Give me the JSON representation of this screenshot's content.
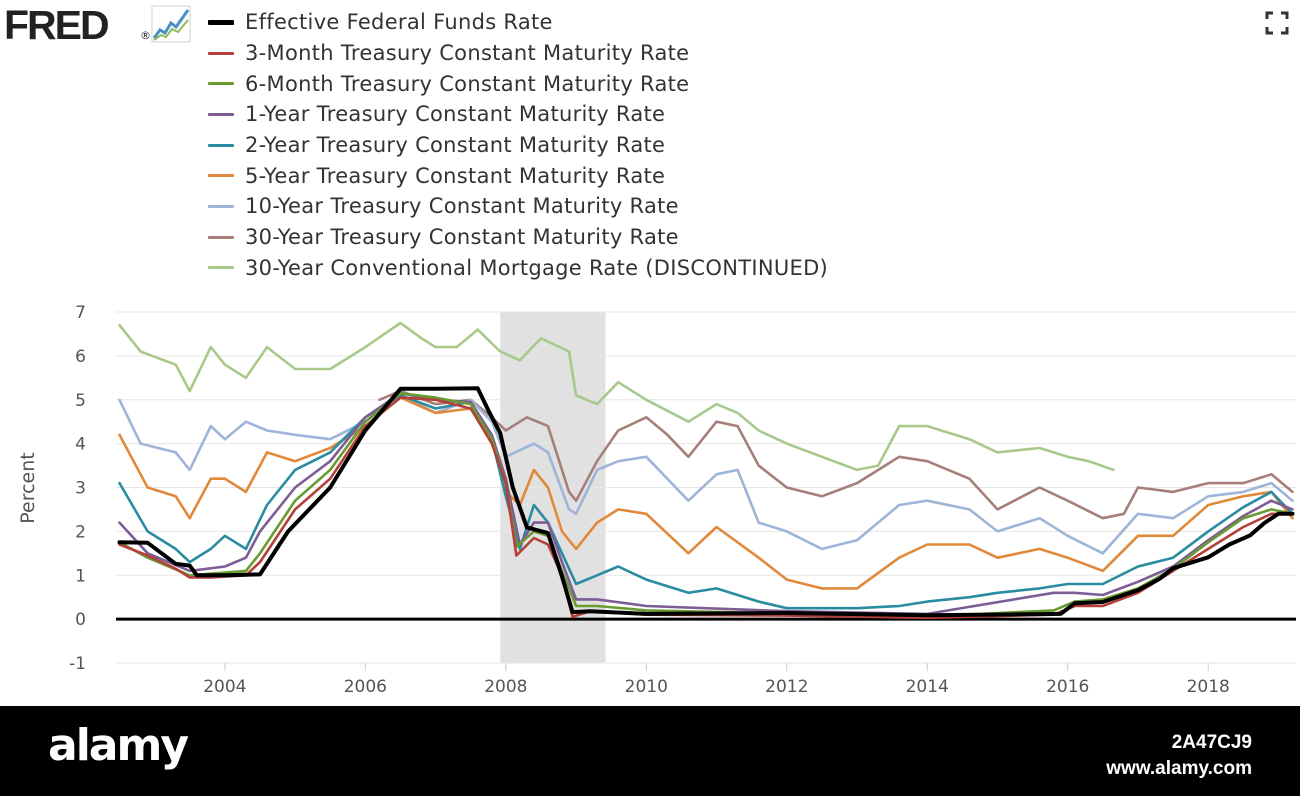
{
  "logo": {
    "text": "FRED",
    "mark": "®",
    "icon": "trend-line-icon"
  },
  "fullscreen_icon": "expand-icon",
  "footer": {
    "brand": "alamy",
    "image_id": "2A47CJ9",
    "url": "www.alamy.com"
  },
  "colors": {
    "recession_band": "#e1e1e1",
    "zero_line": "#000000",
    "grid": "#e6e6e6",
    "footer_bg": "#000000"
  },
  "chart_data": {
    "type": "line",
    "ylabel": "Percent",
    "ylim": [
      -1,
      7
    ],
    "yticks": [
      "7",
      "6",
      "5",
      "4",
      "3",
      "2",
      "1",
      "0",
      "-1"
    ],
    "xlim": [
      2002.45,
      2019.25
    ],
    "xticks": [
      "2004",
      "2006",
      "2008",
      "2010",
      "2012",
      "2014",
      "2016",
      "2018"
    ],
    "grid": true,
    "legend_position": "top",
    "recession": [
      2007.92,
      2009.42
    ],
    "series": [
      {
        "name": "Effective Federal Funds Rate",
        "color": "#000000",
        "x": [
          2002.5,
          2002.9,
          2003.3,
          2003.5,
          2003.6,
          2004.0,
          2004.5,
          2004.9,
          2005.5,
          2006.0,
          2006.5,
          2007.0,
          2007.6,
          2007.75,
          2007.92,
          2008.1,
          2008.3,
          2008.6,
          2008.8,
          2008.95,
          2009.2,
          2010.0,
          2012.0,
          2014.0,
          2015.9,
          2016.1,
          2016.5,
          2017.0,
          2017.3,
          2017.5,
          2018.0,
          2018.3,
          2018.6,
          2018.8,
          2019.0,
          2019.2
        ],
        "y": [
          1.75,
          1.74,
          1.26,
          1.22,
          1.0,
          1.0,
          1.02,
          2.0,
          3.0,
          4.3,
          5.25,
          5.25,
          5.26,
          4.76,
          4.24,
          3.0,
          2.09,
          1.96,
          0.97,
          0.16,
          0.18,
          0.12,
          0.14,
          0.09,
          0.12,
          0.36,
          0.39,
          0.66,
          0.91,
          1.16,
          1.41,
          1.7,
          1.91,
          2.19,
          2.4,
          2.4
        ]
      },
      {
        "name": "3-Month Treasury Constant Maturity Rate",
        "color": "#b5403a",
        "x": [
          2002.5,
          2002.9,
          2003.3,
          2003.5,
          2003.8,
          2004.3,
          2004.5,
          2005.0,
          2005.5,
          2006.0,
          2006.5,
          2007.0,
          2007.5,
          2007.8,
          2008.0,
          2008.15,
          2008.4,
          2008.6,
          2008.8,
          2008.95,
          2009.2,
          2010.0,
          2012.0,
          2014.0,
          2015.8,
          2016.1,
          2016.5,
          2017.0,
          2017.5,
          2018.0,
          2018.5,
          2018.9,
          2019.2
        ],
        "y": [
          1.7,
          1.45,
          1.15,
          0.95,
          0.95,
          1.0,
          1.3,
          2.5,
          3.2,
          4.4,
          5.05,
          5.0,
          4.8,
          4.0,
          3.1,
          1.45,
          1.85,
          1.7,
          1.0,
          0.05,
          0.18,
          0.1,
          0.08,
          0.03,
          0.1,
          0.3,
          0.3,
          0.6,
          1.1,
          1.6,
          2.1,
          2.4,
          2.4
        ]
      },
      {
        "name": "6-Month Treasury Constant Maturity Rate",
        "color": "#6a9b32",
        "x": [
          2002.5,
          2002.9,
          2003.5,
          2004.3,
          2004.5,
          2005.0,
          2005.5,
          2006.0,
          2006.5,
          2007.0,
          2007.5,
          2007.8,
          2008.0,
          2008.15,
          2008.4,
          2008.6,
          2008.8,
          2009.0,
          2009.3,
          2010.0,
          2012.0,
          2014.0,
          2015.8,
          2016.1,
          2016.5,
          2017.0,
          2017.5,
          2018.0,
          2018.5,
          2018.9,
          2019.2
        ],
        "y": [
          1.75,
          1.4,
          1.0,
          1.1,
          1.5,
          2.7,
          3.4,
          4.5,
          5.15,
          5.05,
          4.9,
          4.1,
          3.1,
          1.65,
          2.0,
          1.9,
          1.1,
          0.3,
          0.3,
          0.2,
          0.13,
          0.06,
          0.2,
          0.4,
          0.45,
          0.7,
          1.15,
          1.75,
          2.3,
          2.5,
          2.4
        ]
      },
      {
        "name": "1-Year Treasury Constant Maturity Rate",
        "color": "#7e5c96",
        "x": [
          2002.5,
          2002.9,
          2003.5,
          2004.0,
          2004.3,
          2004.5,
          2005.0,
          2005.5,
          2006.0,
          2006.5,
          2007.0,
          2007.5,
          2007.8,
          2008.0,
          2008.2,
          2008.4,
          2008.6,
          2008.8,
          2009.0,
          2009.3,
          2010.0,
          2012.0,
          2014.0,
          2015.8,
          2016.1,
          2016.5,
          2017.0,
          2017.5,
          2018.0,
          2018.5,
          2018.9,
          2019.2
        ],
        "y": [
          2.2,
          1.5,
          1.1,
          1.2,
          1.4,
          2.0,
          3.0,
          3.6,
          4.6,
          5.15,
          5.0,
          4.95,
          4.2,
          3.2,
          1.7,
          2.2,
          2.2,
          1.3,
          0.45,
          0.45,
          0.3,
          0.18,
          0.12,
          0.6,
          0.6,
          0.55,
          0.85,
          1.2,
          1.8,
          2.35,
          2.7,
          2.5
        ]
      },
      {
        "name": "2-Year Treasury Constant Maturity Rate",
        "color": "#2a8ca0",
        "x": [
          2002.5,
          2002.9,
          2003.3,
          2003.5,
          2003.8,
          2004.0,
          2004.3,
          2004.6,
          2005.0,
          2005.5,
          2006.0,
          2006.5,
          2007.0,
          2007.5,
          2007.8,
          2008.0,
          2008.2,
          2008.4,
          2008.6,
          2008.8,
          2009.0,
          2009.3,
          2009.6,
          2010.0,
          2010.6,
          2011.0,
          2011.6,
          2012.0,
          2013.0,
          2013.6,
          2014.0,
          2014.6,
          2015.0,
          2015.6,
          2016.0,
          2016.5,
          2017.0,
          2017.5,
          2018.0,
          2018.5,
          2018.9,
          2019.2
        ],
        "y": [
          3.1,
          2.0,
          1.6,
          1.3,
          1.6,
          1.9,
          1.6,
          2.6,
          3.4,
          3.8,
          4.6,
          5.1,
          4.8,
          4.95,
          4.1,
          2.8,
          1.6,
          2.6,
          2.2,
          1.5,
          0.8,
          1.0,
          1.2,
          0.9,
          0.6,
          0.7,
          0.4,
          0.25,
          0.25,
          0.3,
          0.4,
          0.5,
          0.6,
          0.7,
          0.8,
          0.8,
          1.2,
          1.4,
          2.0,
          2.55,
          2.9,
          2.4
        ]
      },
      {
        "name": "5-Year Treasury Constant Maturity Rate",
        "color": "#e0893a",
        "x": [
          2002.5,
          2002.9,
          2003.3,
          2003.5,
          2003.8,
          2004.0,
          2004.3,
          2004.6,
          2005.0,
          2005.5,
          2006.0,
          2006.5,
          2007.0,
          2007.5,
          2007.8,
          2008.0,
          2008.2,
          2008.4,
          2008.6,
          2008.8,
          2009.0,
          2009.3,
          2009.6,
          2010.0,
          2010.6,
          2011.0,
          2011.6,
          2012.0,
          2012.5,
          2013.0,
          2013.6,
          2014.0,
          2014.6,
          2015.0,
          2015.6,
          2016.0,
          2016.5,
          2017.0,
          2017.5,
          2018.0,
          2018.5,
          2018.9,
          2019.2
        ],
        "y": [
          4.2,
          3.0,
          2.8,
          2.3,
          3.2,
          3.2,
          2.9,
          3.8,
          3.6,
          3.9,
          4.4,
          5.05,
          4.7,
          4.8,
          4.1,
          2.9,
          2.6,
          3.4,
          3.0,
          2.0,
          1.6,
          2.2,
          2.5,
          2.4,
          1.5,
          2.1,
          1.4,
          0.9,
          0.7,
          0.7,
          1.4,
          1.7,
          1.7,
          1.4,
          1.6,
          1.4,
          1.1,
          1.9,
          1.9,
          2.6,
          2.8,
          2.9,
          2.3
        ]
      },
      {
        "name": "10-Year Treasury Constant Maturity Rate",
        "color": "#9eb4d8",
        "x": [
          2002.5,
          2002.8,
          2003.3,
          2003.5,
          2003.8,
          2004.0,
          2004.3,
          2004.6,
          2005.0,
          2005.5,
          2006.0,
          2006.5,
          2007.0,
          2007.5,
          2007.8,
          2008.0,
          2008.4,
          2008.6,
          2008.9,
          2009.0,
          2009.3,
          2009.6,
          2010.0,
          2010.6,
          2011.0,
          2011.3,
          2011.6,
          2012.0,
          2012.5,
          2013.0,
          2013.6,
          2014.0,
          2014.6,
          2015.0,
          2015.6,
          2016.0,
          2016.5,
          2017.0,
          2017.5,
          2018.0,
          2018.5,
          2018.9,
          2019.2
        ],
        "y": [
          5.0,
          4.0,
          3.8,
          3.4,
          4.4,
          4.1,
          4.5,
          4.3,
          4.2,
          4.1,
          4.5,
          5.1,
          4.7,
          5.0,
          4.5,
          3.7,
          4.0,
          3.8,
          2.5,
          2.4,
          3.4,
          3.6,
          3.7,
          2.7,
          3.3,
          3.4,
          2.2,
          2.0,
          1.6,
          1.8,
          2.6,
          2.7,
          2.5,
          2.0,
          2.3,
          1.9,
          1.5,
          2.4,
          2.3,
          2.8,
          2.9,
          3.1,
          2.7
        ]
      },
      {
        "name": "30-Year Treasury Constant Maturity Rate",
        "color": "#a67f7a",
        "x": [
          2006.2,
          2006.5,
          2007.0,
          2007.5,
          2007.8,
          2008.0,
          2008.3,
          2008.6,
          2008.9,
          2009.0,
          2009.3,
          2009.6,
          2010.0,
          2010.3,
          2010.6,
          2011.0,
          2011.3,
          2011.6,
          2012.0,
          2012.5,
          2013.0,
          2013.6,
          2014.0,
          2014.6,
          2015.0,
          2015.6,
          2016.0,
          2016.5,
          2016.8,
          2017.0,
          2017.5,
          2018.0,
          2018.5,
          2018.9,
          2019.2
        ],
        "y": [
          5.0,
          5.2,
          4.9,
          5.0,
          4.6,
          4.3,
          4.6,
          4.4,
          2.9,
          2.7,
          3.6,
          4.3,
          4.6,
          4.2,
          3.7,
          4.5,
          4.4,
          3.5,
          3.0,
          2.8,
          3.1,
          3.7,
          3.6,
          3.2,
          2.5,
          3.0,
          2.7,
          2.3,
          2.4,
          3.0,
          2.9,
          3.1,
          3.1,
          3.3,
          2.9
        ]
      },
      {
        "name": "30-Year Conventional Mortgage Rate (DISCONTINUED)",
        "color": "#a9c98a",
        "x": [
          2002.5,
          2002.8,
          2003.3,
          2003.5,
          2003.8,
          2004.0,
          2004.3,
          2004.6,
          2005.0,
          2005.5,
          2006.0,
          2006.5,
          2006.8,
          2007.0,
          2007.3,
          2007.6,
          2007.92,
          2008.2,
          2008.5,
          2008.9,
          2009.0,
          2009.3,
          2009.6,
          2010.0,
          2010.6,
          2011.0,
          2011.3,
          2011.6,
          2012.0,
          2012.5,
          2013.0,
          2013.3,
          2013.6,
          2014.0,
          2014.6,
          2015.0,
          2015.6,
          2016.0,
          2016.3,
          2016.65
        ],
        "y": [
          6.7,
          6.1,
          5.8,
          5.2,
          6.2,
          5.8,
          5.5,
          6.2,
          5.7,
          5.7,
          6.2,
          6.75,
          6.4,
          6.2,
          6.2,
          6.6,
          6.1,
          5.9,
          6.4,
          6.1,
          5.1,
          4.9,
          5.4,
          5.0,
          4.5,
          4.9,
          4.7,
          4.3,
          4.0,
          3.7,
          3.4,
          3.5,
          4.4,
          4.4,
          4.1,
          3.8,
          3.9,
          3.7,
          3.6,
          3.4
        ]
      }
    ]
  }
}
